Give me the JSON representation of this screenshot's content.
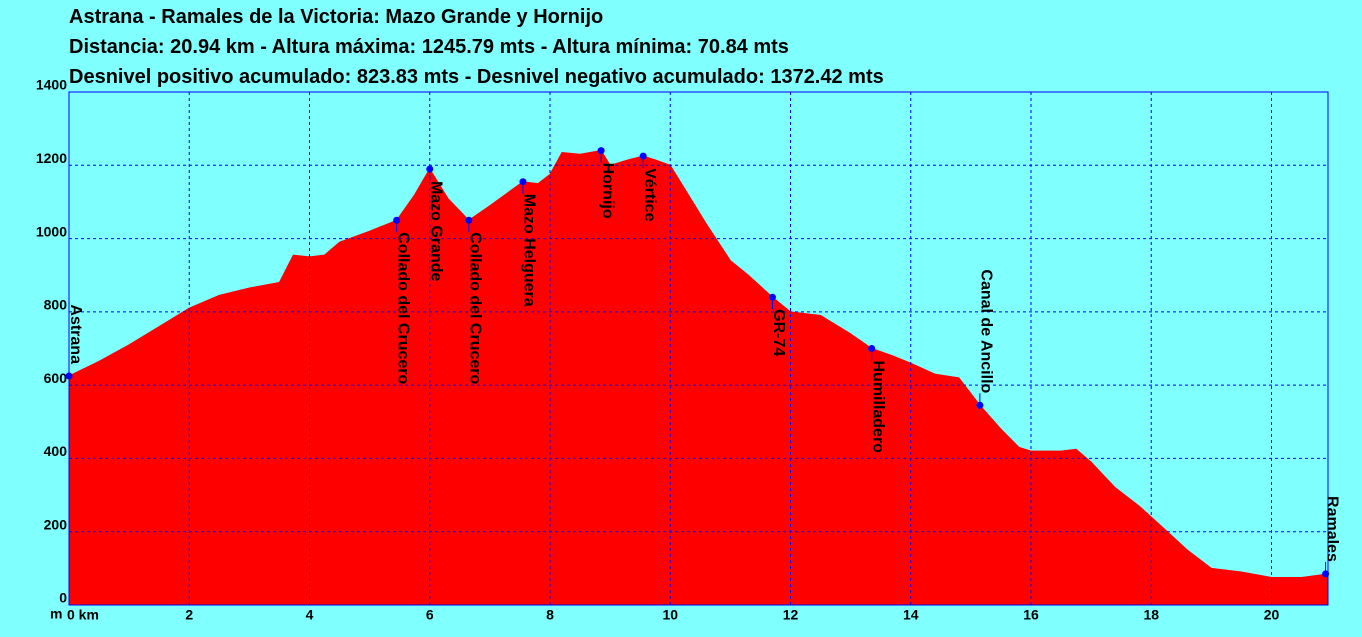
{
  "chart_data": {
    "type": "area",
    "title": "Astrana - Ramales de la Victoria:  Mazo Grande y Hornijo",
    "subtitle": "Distancia: 20.94 km - Altura máxima: 1245.79 mts - Altura mínima: 70.84 mts",
    "subtitle2": "Desnivel positivo acumulado: 823.83 mts - Desnivel negativo acumulado: 1372.42 mts",
    "y_unit": "m",
    "color": "#ff0000",
    "marker_color": "#0000ff",
    "grid": true,
    "xlim": [
      0,
      20.94
    ],
    "ylim": [
      0,
      1400
    ],
    "xticks": [
      {
        "value": 0,
        "label": "0 km"
      },
      2,
      4,
      6,
      8,
      10,
      12,
      14,
      16,
      18,
      20
    ],
    "yticks": [
      0,
      200,
      400,
      600,
      800,
      1000,
      1200,
      1400
    ],
    "x": [
      0,
      0.5,
      1.0,
      1.5,
      2.0,
      2.5,
      3.0,
      3.5,
      3.73,
      4.0,
      4.25,
      4.5,
      5.0,
      5.45,
      5.75,
      6.0,
      6.3,
      6.65,
      7.0,
      7.55,
      7.8,
      8.0,
      8.2,
      8.5,
      8.85,
      9.0,
      9.3,
      9.55,
      9.75,
      10.0,
      10.3,
      10.6,
      11.0,
      11.3,
      11.7,
      12.0,
      12.5,
      13.0,
      13.35,
      13.7,
      14.0,
      14.4,
      14.8,
      15.15,
      15.5,
      15.8,
      16.0,
      16.5,
      16.75,
      17.0,
      17.4,
      17.8,
      18.2,
      18.6,
      19.0,
      19.5,
      20.0,
      20.5,
      20.94
    ],
    "values": [
      625,
      665,
      710,
      760,
      810,
      845,
      865,
      880,
      955,
      950,
      955,
      990,
      1020,
      1050,
      1120,
      1190,
      1110,
      1050,
      1090,
      1155,
      1150,
      1175,
      1235,
      1230,
      1240,
      1200,
      1215,
      1225,
      1215,
      1200,
      1120,
      1040,
      940,
      900,
      840,
      800,
      790,
      740,
      700,
      680,
      660,
      630,
      620,
      545,
      480,
      430,
      420,
      420,
      425,
      390,
      320,
      270,
      210,
      150,
      100,
      90,
      75,
      75,
      85
    ],
    "annotations": [
      {
        "text": "Astrana",
        "x": 0,
        "y": 625
      },
      {
        "text": "Collado del Crucero",
        "x": 5.45,
        "y": 1050
      },
      {
        "text": "Mazo Grande",
        "x": 6.0,
        "y": 1190
      },
      {
        "text": "Collado del Crucero",
        "x": 6.65,
        "y": 1050
      },
      {
        "text": "Mazo Helguera",
        "x": 7.55,
        "y": 1155
      },
      {
        "text": "Hornijo",
        "x": 8.85,
        "y": 1240
      },
      {
        "text": "Vértice",
        "x": 9.55,
        "y": 1225
      },
      {
        "text": "GR-74",
        "x": 11.7,
        "y": 840
      },
      {
        "text": "Humilladero",
        "x": 13.35,
        "y": 700
      },
      {
        "text": "Canal de Ancillo",
        "x": 15.15,
        "y": 545
      },
      {
        "text": "Ramales",
        "x": 20.9,
        "y": 85
      }
    ]
  }
}
